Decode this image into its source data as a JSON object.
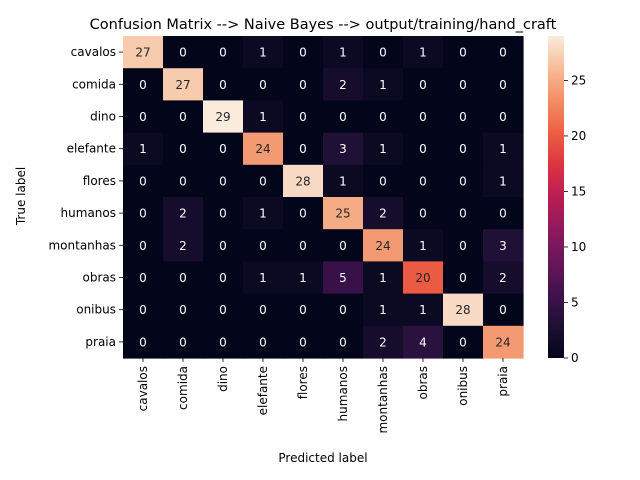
{
  "chart_data": {
    "type": "heatmap",
    "title": "Confusion Matrix --> Naive Bayes --> output/training/hand_craft",
    "xlabel": "Predicted label",
    "ylabel": "True label",
    "x_categories": [
      "cavalos",
      "comida",
      "dino",
      "elefante",
      "flores",
      "humanos",
      "montanhas",
      "obras",
      "onibus",
      "praia"
    ],
    "y_categories": [
      "cavalos",
      "comida",
      "dino",
      "elefante",
      "flores",
      "humanos",
      "montanhas",
      "obras",
      "onibus",
      "praia"
    ],
    "values": [
      [
        27,
        0,
        0,
        1,
        0,
        1,
        0,
        1,
        0,
        0
      ],
      [
        0,
        27,
        0,
        0,
        0,
        2,
        1,
        0,
        0,
        0
      ],
      [
        0,
        0,
        29,
        1,
        0,
        0,
        0,
        0,
        0,
        0
      ],
      [
        1,
        0,
        0,
        24,
        0,
        3,
        1,
        0,
        0,
        1
      ],
      [
        0,
        0,
        0,
        0,
        28,
        1,
        0,
        0,
        0,
        1
      ],
      [
        0,
        2,
        0,
        1,
        0,
        25,
        2,
        0,
        0,
        0
      ],
      [
        0,
        2,
        0,
        0,
        0,
        0,
        24,
        1,
        0,
        3
      ],
      [
        0,
        0,
        0,
        1,
        1,
        5,
        1,
        20,
        0,
        2
      ],
      [
        0,
        0,
        0,
        0,
        0,
        0,
        1,
        1,
        28,
        0
      ],
      [
        0,
        0,
        0,
        0,
        0,
        0,
        2,
        4,
        0,
        24
      ]
    ],
    "colorbar": {
      "range": [
        0,
        29
      ],
      "ticks": [
        "0",
        "5",
        "10",
        "15",
        "20",
        "25"
      ]
    }
  }
}
